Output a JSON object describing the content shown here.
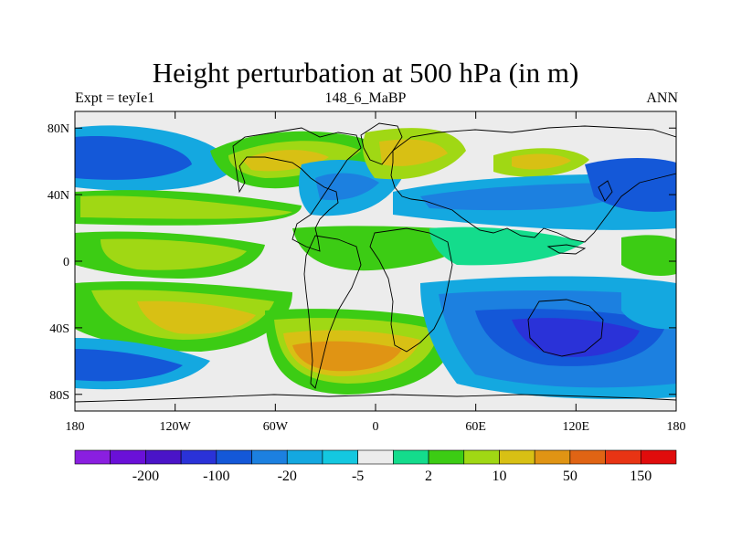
{
  "title": "Height perturbation at 500 hPa (in m)",
  "subtitle_left": "Expt = teyIe1",
  "subtitle_center": "148_6_MaBP",
  "subtitle_right": "ANN",
  "map": {
    "lon_range": [
      -180,
      180
    ],
    "lat_range": [
      -90,
      90
    ],
    "lat_ticks": [
      {
        "value": 80,
        "label": "80N"
      },
      {
        "value": 40,
        "label": "40N"
      },
      {
        "value": 0,
        "label": "0"
      },
      {
        "value": -40,
        "label": "40S"
      },
      {
        "value": -80,
        "label": "80S"
      }
    ],
    "lon_ticks": [
      {
        "value": -180,
        "label": "180"
      },
      {
        "value": -120,
        "label": "120W"
      },
      {
        "value": -60,
        "label": "60W"
      },
      {
        "value": 0,
        "label": "0"
      },
      {
        "value": 60,
        "label": "60E"
      },
      {
        "value": 120,
        "label": "120E"
      },
      {
        "value": 180,
        "label": "180"
      }
    ]
  },
  "colorbar": {
    "colors": [
      "#8a1fe0",
      "#6a10d8",
      "#4a14c8",
      "#2a32d8",
      "#1458d8",
      "#1c80e0",
      "#14a8e0",
      "#14c8e0",
      "#ececec",
      "#14dc8c",
      "#3ccc14",
      "#a0d814",
      "#d8c014",
      "#e09414",
      "#e06414",
      "#e83414",
      "#e00c0c"
    ],
    "labels": [
      {
        "after_index": 1,
        "text": "-200"
      },
      {
        "after_index": 3,
        "text": "-100"
      },
      {
        "after_index": 5,
        "text": "-20"
      },
      {
        "after_index": 7,
        "text": "-5"
      },
      {
        "after_index": 9,
        "text": "2"
      },
      {
        "after_index": 11,
        "text": "10"
      },
      {
        "after_index": 13,
        "text": "50"
      },
      {
        "after_index": 15,
        "text": "150"
      }
    ]
  }
}
